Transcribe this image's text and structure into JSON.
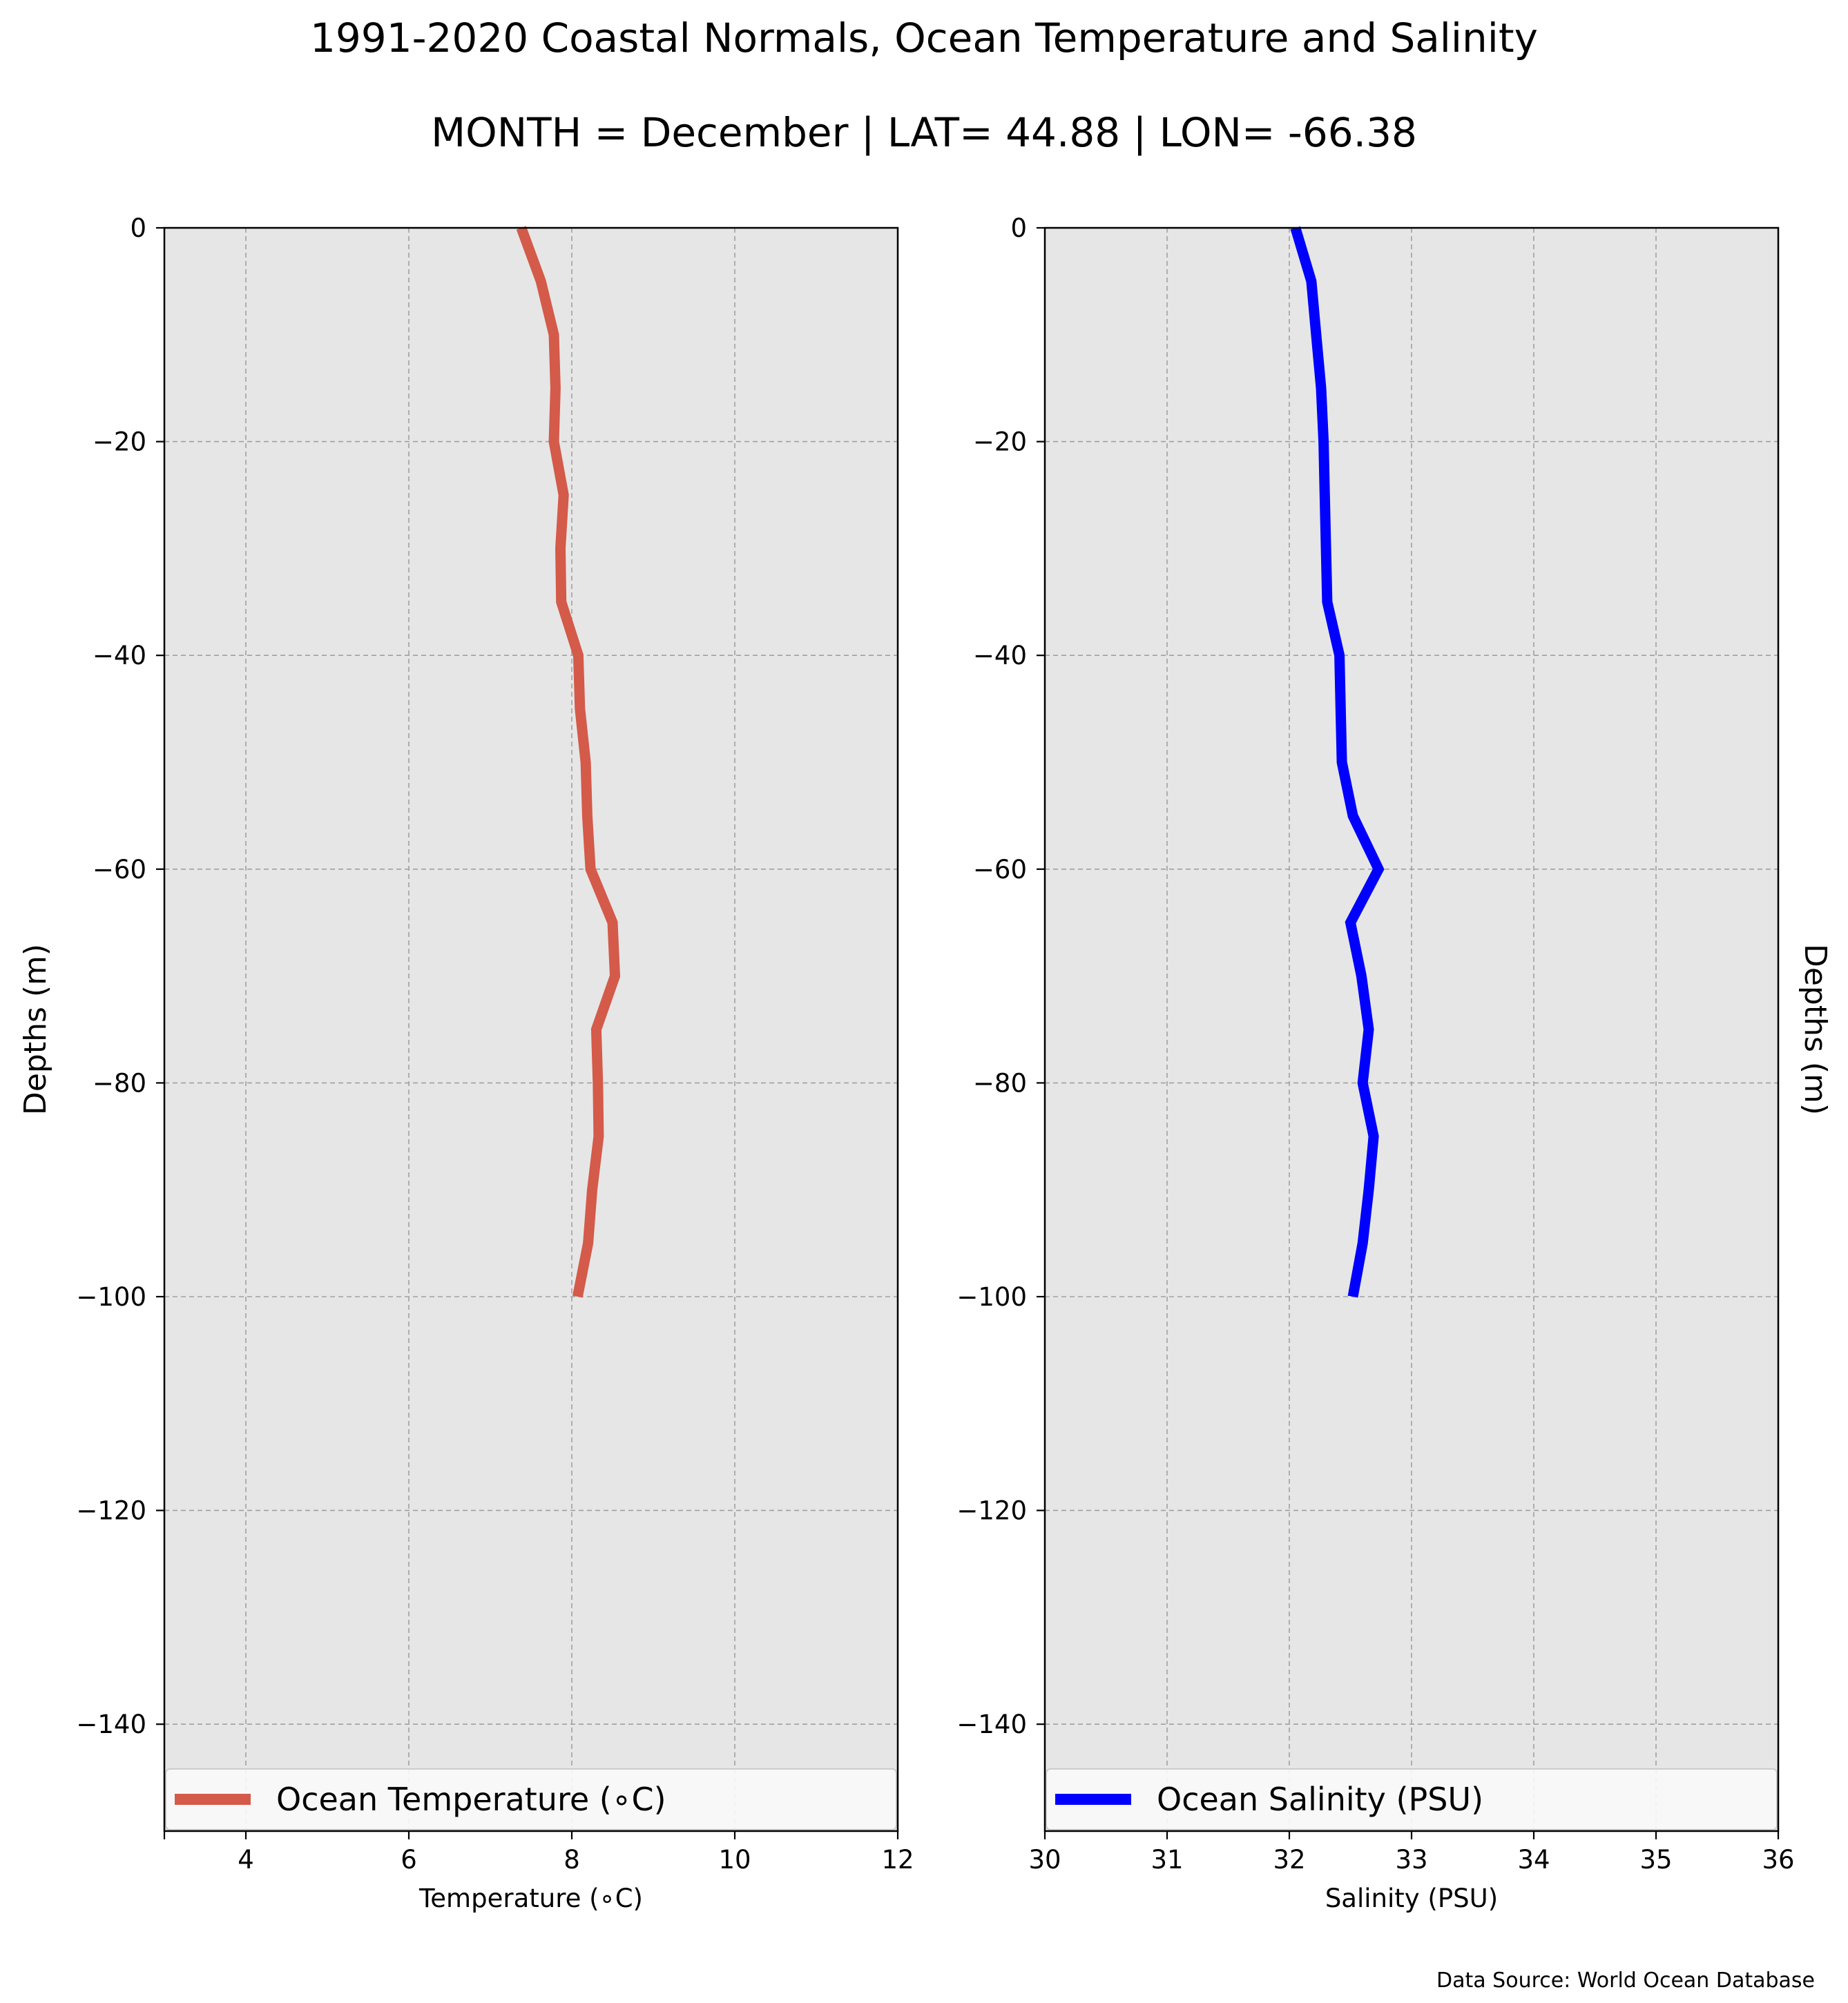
{
  "figure": {
    "title": "1991-2020 Coastal Normals, Ocean Temperature and Salinity",
    "subtitle": "MONTH = December | LAT= 44.88 | LON= -66.38",
    "source": "Data Source: World Ocean Database",
    "background": "#e6e6e6",
    "grid_color": "#a0a0a0"
  },
  "chart_data": [
    {
      "type": "line",
      "xlabel": "Temperature (∘C)",
      "ylabel": "Depths (m)",
      "xlim": [
        3,
        12
      ],
      "ylim": [
        -150,
        0
      ],
      "xticks": [
        4,
        6,
        8,
        10,
        12
      ],
      "xtick_labels": [
        "4",
        "6",
        "8",
        "10",
        "12"
      ],
      "yticks": [
        0,
        -20,
        -40,
        -60,
        -80,
        -100,
        -120,
        -140
      ],
      "ytick_labels": [
        "0",
        "−20",
        "−40",
        "−60",
        "−80",
        "−100",
        "−120",
        "−140"
      ],
      "grid": true,
      "legend_position": "bottom",
      "series": [
        {
          "name": "Ocean Temperature (∘C)",
          "color": "#d45a4a",
          "x": [
            7.38,
            7.62,
            7.78,
            7.8,
            7.78,
            7.9,
            7.86,
            7.87,
            8.08,
            8.1,
            8.17,
            8.19,
            8.23,
            8.5,
            8.53,
            8.3,
            8.32,
            8.33,
            8.25,
            8.2,
            8.07
          ],
          "y": [
            0,
            -5,
            -10,
            -15,
            -20,
            -25,
            -30,
            -35,
            -40,
            -45,
            -50,
            -55,
            -60,
            -65,
            -70,
            -75,
            -80,
            -85,
            -90,
            -95,
            -100
          ]
        }
      ]
    },
    {
      "type": "line",
      "xlabel": "Salinity (PSU)",
      "ylabel": "Depths (m)",
      "xlim": [
        30,
        36
      ],
      "ylim": [
        -150,
        0
      ],
      "xticks": [
        30,
        31,
        32,
        33,
        34,
        35,
        36
      ],
      "xtick_labels": [
        "30",
        "31",
        "32",
        "33",
        "34",
        "35",
        "36"
      ],
      "yticks": [
        0,
        -20,
        -40,
        -60,
        -80,
        -100,
        -120,
        -140
      ],
      "ytick_labels": [
        "0",
        "−20",
        "−40",
        "−60",
        "−80",
        "−100",
        "−120",
        "−140"
      ],
      "grid": true,
      "legend_position": "bottom",
      "series": [
        {
          "name": "Ocean Salinity (PSU)",
          "color": "#0000ff",
          "x": [
            32.05,
            32.18,
            32.22,
            32.26,
            32.28,
            32.29,
            32.3,
            32.31,
            32.41,
            32.42,
            32.43,
            32.52,
            32.73,
            32.5,
            32.59,
            32.65,
            32.6,
            32.69,
            32.65,
            32.6,
            32.52
          ],
          "y": [
            0,
            -5,
            -10,
            -15,
            -20,
            -25,
            -30,
            -35,
            -40,
            -45,
            -50,
            -55,
            -60,
            -65,
            -70,
            -75,
            -80,
            -85,
            -90,
            -95,
            -100
          ]
        }
      ]
    }
  ]
}
